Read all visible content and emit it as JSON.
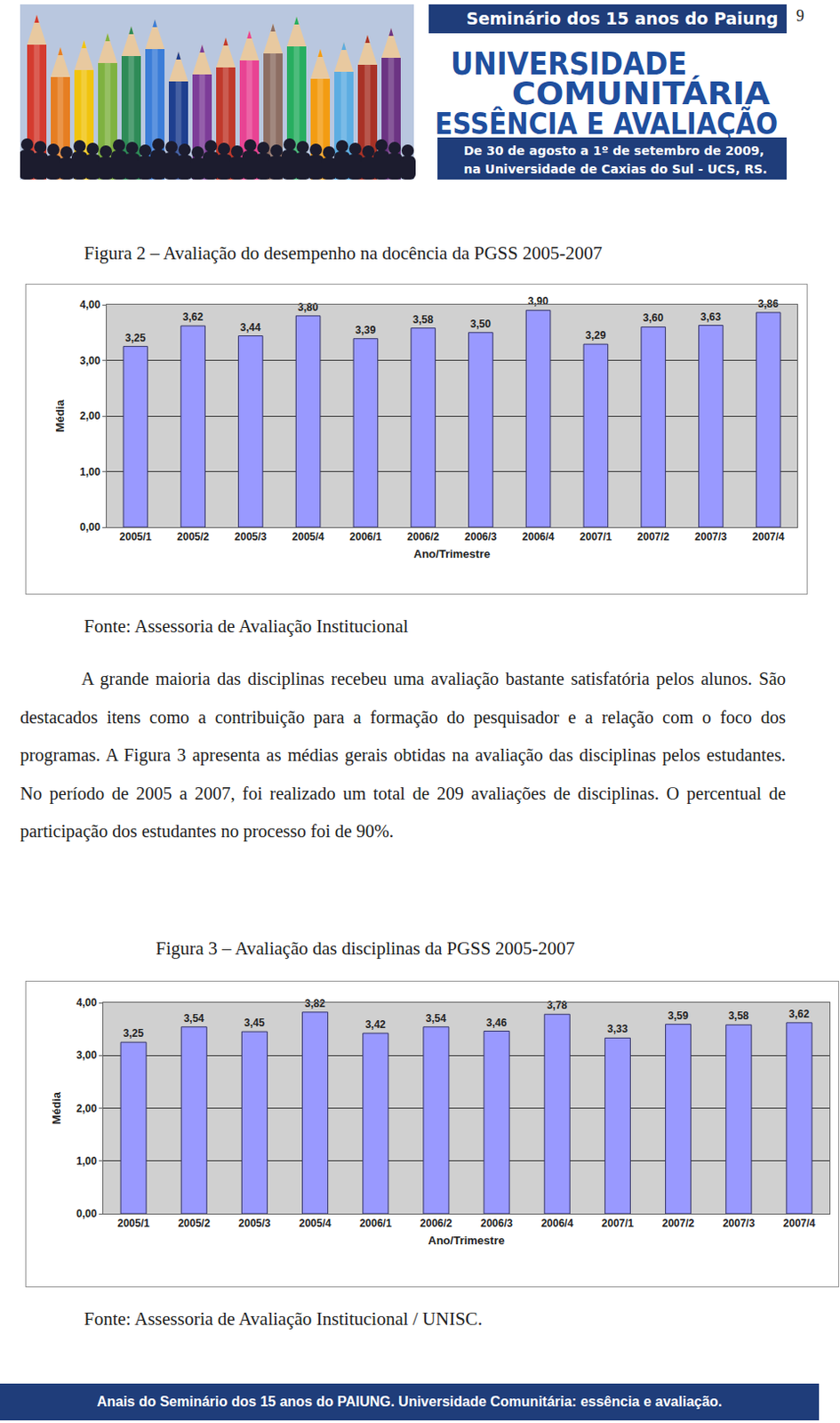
{
  "page_number": "9",
  "header": {
    "banner": "Seminário dos 15 anos do Paiung",
    "title_lines": [
      "UNIVERSIDADE",
      "COMUNITÁRIA",
      "ESSÊNCIA E AVALIAÇÃO"
    ],
    "dates": [
      "De 30 de agosto a 1º de setembro de 2009,",
      "na Universidade de Caxias do Sul - UCS, RS."
    ]
  },
  "figures": [
    {
      "caption": "Figura 2 – Avaliação do desempenho na docência da PGSS 2005-2007",
      "source": "Fonte: Assessoria de Avaliação Institucional"
    },
    {
      "caption": "Figura 3 – Avaliação das disciplinas da PGSS 2005-2007",
      "source": "Fonte: Assessoria de Avaliação Institucional / UNISC."
    }
  ],
  "paragraph": "A grande maioria das disciplinas recebeu uma avaliação bastante satisfatória pelos alunos. São destacados itens como a contribuição para a formação do pesquisador e a relação com o foco dos programas. A Figura 3 apresenta as médias gerais obtidas na avaliação das disciplinas pelos estudantes. No período de 2005 a 2007, foi realizado um total de 209 avaliações de disciplinas. O percentual de participação dos estudantes no processo foi de 90%.",
  "footer": "Anais do Seminário dos 15 anos do PAIUNG. Universidade Comunitária: essência e avaliação.",
  "chart_data": [
    {
      "type": "bar",
      "xlabel": "Ano/Trimestre",
      "ylabel": "Média",
      "categories": [
        "2005/1",
        "2005/2",
        "2005/3",
        "2005/4",
        "2006/1",
        "2006/2",
        "2006/3",
        "2006/4",
        "2007/1",
        "2007/2",
        "2007/3",
        "2007/4"
      ],
      "values": [
        3.25,
        3.62,
        3.44,
        3.8,
        3.39,
        3.58,
        3.5,
        3.9,
        3.29,
        3.6,
        3.63,
        3.86
      ],
      "value_labels": [
        "3,25",
        "3,62",
        "3,44",
        "3,80",
        "3,39",
        "3,58",
        "3,50",
        "3,90",
        "3,29",
        "3,60",
        "3,63",
        "3,86"
      ],
      "color": "#9999ff",
      "data_labels": true,
      "grid": true,
      "ylim": [
        0,
        4
      ],
      "yticks": [
        {
          "value": 0,
          "label": "0,00"
        },
        {
          "value": 1,
          "label": "1,00"
        },
        {
          "value": 2,
          "label": "2,00"
        },
        {
          "value": 3,
          "label": "3,00"
        },
        {
          "value": 4,
          "label": "4,00"
        }
      ]
    },
    {
      "type": "bar",
      "xlabel": "Ano/Trimestre",
      "ylabel": "Média",
      "categories": [
        "2005/1",
        "2005/2",
        "2005/3",
        "2005/4",
        "2006/1",
        "2006/2",
        "2006/3",
        "2006/4",
        "2007/1",
        "2007/2",
        "2007/3",
        "2007/4"
      ],
      "values": [
        3.25,
        3.54,
        3.45,
        3.82,
        3.42,
        3.54,
        3.46,
        3.78,
        3.33,
        3.59,
        3.58,
        3.62
      ],
      "value_labels": [
        "3,25",
        "3,54",
        "3,45",
        "3,82",
        "3,42",
        "3,54",
        "3,46",
        "3,78",
        "3,33",
        "3,59",
        "3,58",
        "3,62"
      ],
      "color": "#9999ff",
      "data_labels": true,
      "grid": true,
      "ylim": [
        0,
        4
      ],
      "yticks": [
        {
          "value": 0,
          "label": "0,00"
        },
        {
          "value": 1,
          "label": "1,00"
        },
        {
          "value": 2,
          "label": "2,00"
        },
        {
          "value": 3,
          "label": "3,00"
        },
        {
          "value": 4,
          "label": "4,00"
        }
      ]
    }
  ]
}
